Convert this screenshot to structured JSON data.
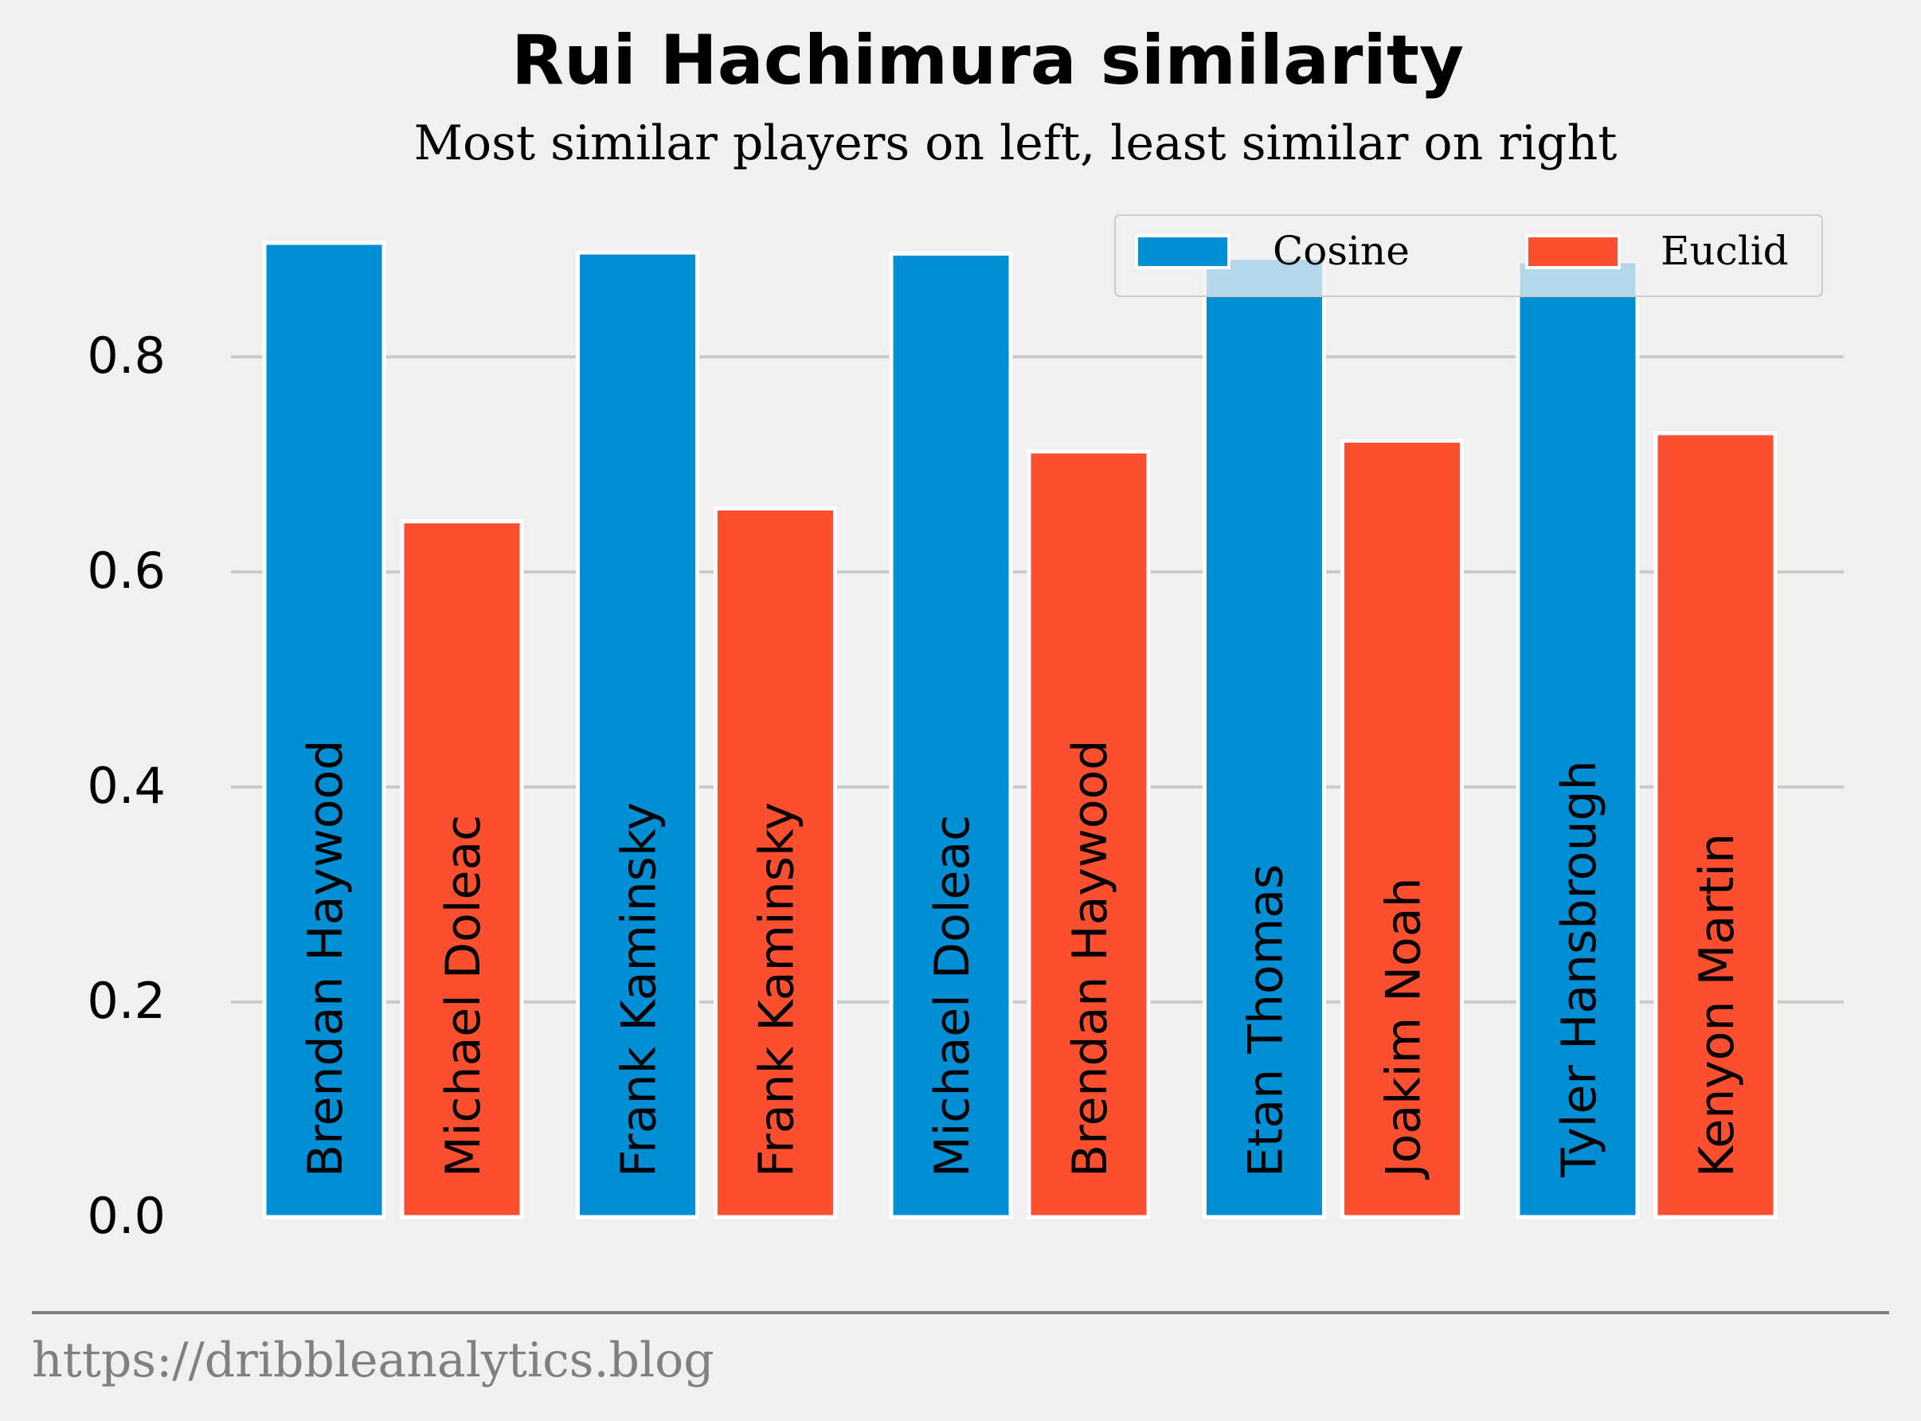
{
  "chart_data": {
    "type": "bar",
    "title": "Rui Hachimura similarity",
    "subtitle": "Most similar players on left, least similar on right",
    "xlabel": "",
    "ylabel": "",
    "ylim": [
      0,
      0.92
    ],
    "yticks": [
      0.0,
      0.2,
      0.4,
      0.6,
      0.8
    ],
    "ytick_labels": [
      "0.0",
      "0.2",
      "0.4",
      "0.6",
      "0.8"
    ],
    "grid": "horizontal",
    "legend_position": "top-right",
    "series": [
      {
        "name": "Cosine",
        "color": "#008fd5",
        "values": [
          0.906,
          0.897,
          0.896,
          0.892,
          0.889
        ],
        "labels": [
          "Brendan Haywood",
          "Frank Kaminsky",
          "Michael Doleac",
          "Etan Thomas",
          "Tyler Hansbrough"
        ]
      },
      {
        "name": "Euclid",
        "color": "#fc4f30",
        "values": [
          0.647,
          0.659,
          0.712,
          0.722,
          0.729
        ],
        "labels": [
          "Michael Doleac",
          "Frank Kaminsky",
          "Brendan Haywood",
          "Joakim Noah",
          "Kenyon Martin"
        ]
      }
    ]
  },
  "footer": {
    "source": "https://dribbleanalytics.blog"
  }
}
